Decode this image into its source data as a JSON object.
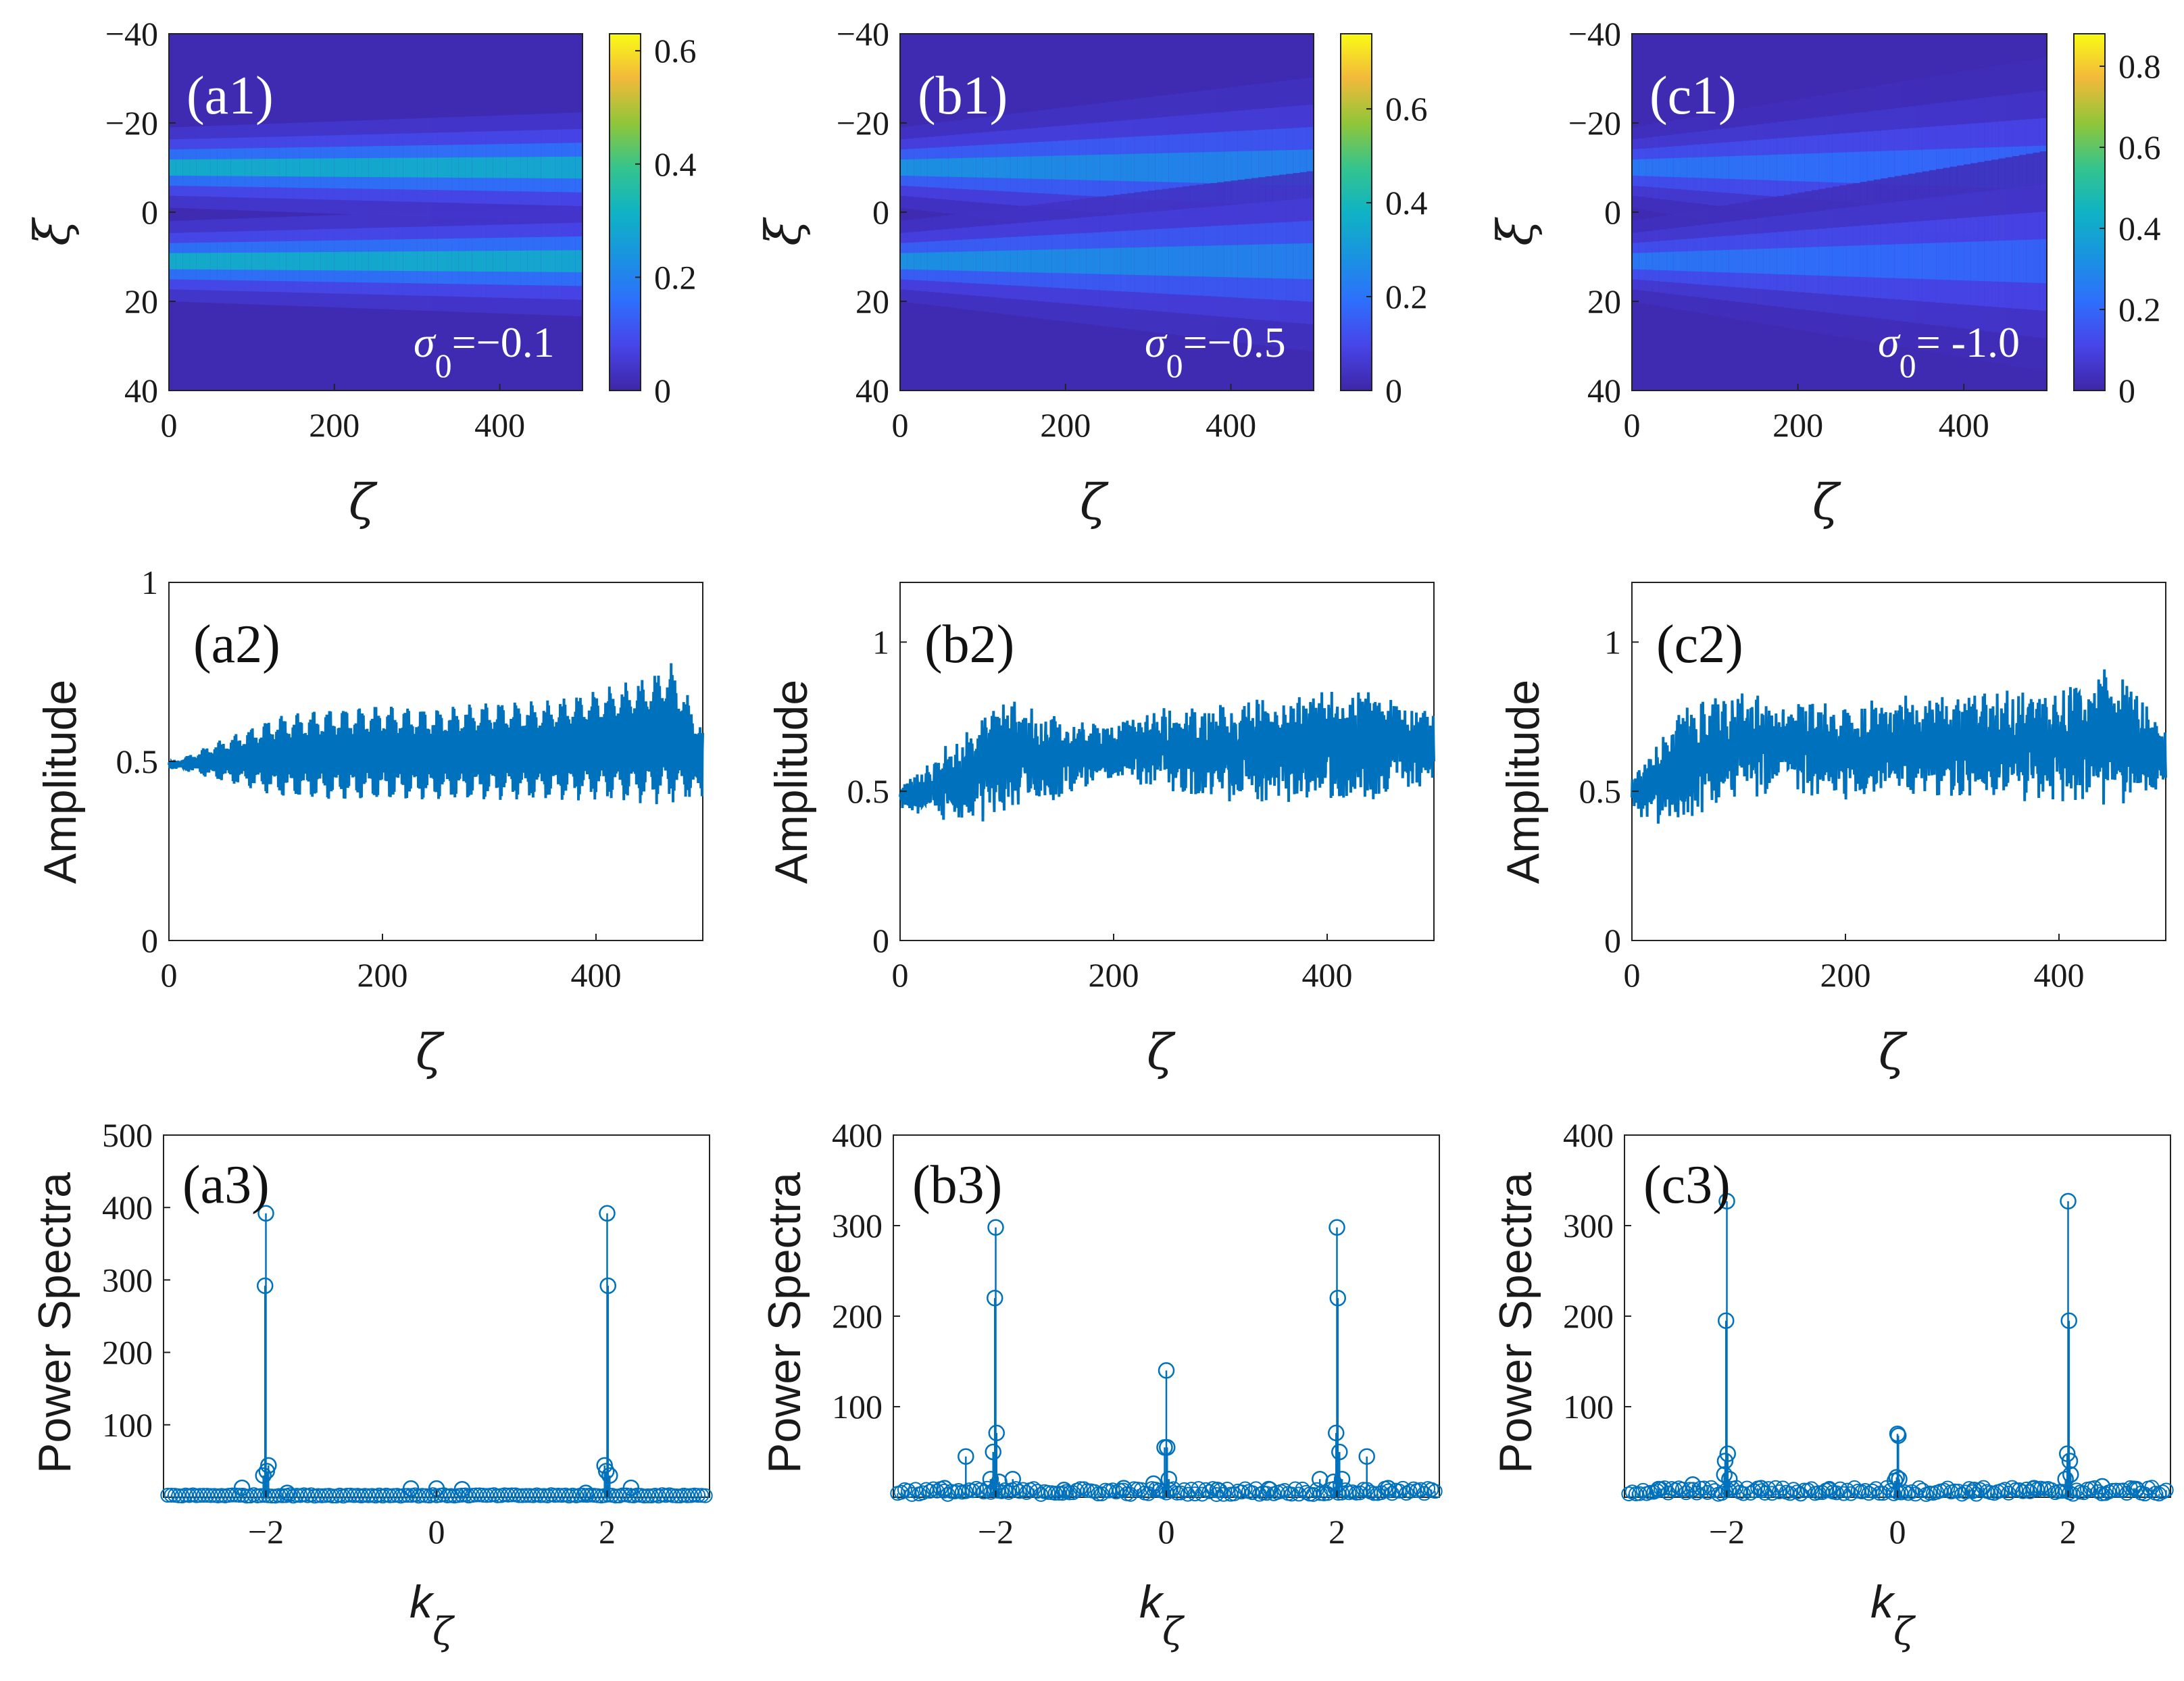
{
  "chart_data": [
    {
      "id": "a1",
      "type": "heatmap",
      "label": "(a1)",
      "xlabel": "ζ",
      "ylabel": "ξ",
      "xlim": [
        0,
        500
      ],
      "ylim": [
        -40,
        40
      ],
      "xticks": [
        "0",
        "200",
        "400"
      ],
      "xtick_values": [
        0,
        200,
        400
      ],
      "yticks": [
        "−40",
        "−20",
        "0",
        "20",
        "40"
      ],
      "ytick_values": [
        -40,
        -20,
        0,
        20,
        40
      ],
      "colorbar_max": 0.63,
      "colorbar_ticks": [
        "0",
        "0.2",
        "0.4",
        "0.6"
      ],
      "colorbar_tick_values": [
        0,
        0.2,
        0.4,
        0.6
      ],
      "annotation_sym": "σ",
      "annotation_sub": "0",
      "annotation_val": "=−0.1",
      "bands": [
        {
          "center": -10,
          "peak": 0.32
        },
        {
          "center": 11,
          "peak": 0.32
        }
      ],
      "spread": 0.15
    },
    {
      "id": "b1",
      "type": "heatmap",
      "label": "(b1)",
      "xlabel": "ζ",
      "ylabel": "ξ",
      "xlim": [
        0,
        500
      ],
      "ylim": [
        -40,
        40
      ],
      "xticks": [
        "0",
        "200",
        "400"
      ],
      "xtick_values": [
        0,
        200,
        400
      ],
      "yticks": [
        "−40",
        "−20",
        "0",
        "20",
        "40"
      ],
      "ytick_values": [
        -40,
        -20,
        0,
        20,
        40
      ],
      "colorbar_max": 0.76,
      "colorbar_ticks": [
        "0",
        "0.2",
        "0.4",
        "0.6"
      ],
      "colorbar_tick_values": [
        0,
        0.2,
        0.4,
        0.6
      ],
      "annotation_sym": "σ",
      "annotation_sub": "0",
      "annotation_val": "=−0.5",
      "bands": [
        {
          "center": -10,
          "peak": 0.3
        },
        {
          "center": 11,
          "peak": 0.3
        }
      ],
      "spread": 0.5
    },
    {
      "id": "c1",
      "type": "heatmap",
      "label": "(c1)",
      "xlabel": "ζ",
      "ylabel": "ξ",
      "xlim": [
        0,
        500
      ],
      "ylim": [
        -40,
        40
      ],
      "xticks": [
        "0",
        "200",
        "400"
      ],
      "xtick_values": [
        0,
        200,
        400
      ],
      "yticks": [
        "−40",
        "−20",
        "0",
        "20",
        "40"
      ],
      "ytick_values": [
        -40,
        -20,
        0,
        20,
        40
      ],
      "colorbar_max": 0.88,
      "colorbar_ticks": [
        "0",
        "0.2",
        "0.4",
        "0.6",
        "0.8"
      ],
      "colorbar_tick_values": [
        0,
        0.2,
        0.4,
        0.6,
        0.8
      ],
      "annotation_sym": "σ",
      "annotation_sub": "0",
      "annotation_val": "= -1.0",
      "bands": [
        {
          "center": -10,
          "peak": 0.26
        },
        {
          "center": 11,
          "peak": 0.26
        }
      ],
      "spread": 0.7
    },
    {
      "id": "a2",
      "type": "line",
      "label": "(a2)",
      "xlabel": "ζ",
      "ylabel": "Amplitude",
      "xlim": [
        0,
        500
      ],
      "ylim": [
        0,
        1
      ],
      "xticks": [
        "0",
        "200",
        "400"
      ],
      "xtick_values": [
        0,
        200,
        400
      ],
      "yticks": [
        "0",
        "0.5",
        "1"
      ],
      "ytick_values": [
        0,
        0.5,
        1
      ],
      "series": [
        {
          "name": "amplitude",
          "x": [
            0,
            20,
            40,
            80,
            100,
            150,
            200,
            250,
            300,
            350,
            400,
            450,
            470,
            500
          ],
          "upper": [
            0.5,
            0.52,
            0.55,
            0.6,
            0.63,
            0.65,
            0.66,
            0.65,
            0.67,
            0.67,
            0.7,
            0.74,
            0.78,
            0.6
          ],
          "lower": [
            0.48,
            0.47,
            0.45,
            0.42,
            0.4,
            0.39,
            0.39,
            0.39,
            0.39,
            0.39,
            0.39,
            0.38,
            0.38,
            0.4
          ],
          "mode": "regular"
        }
      ]
    },
    {
      "id": "b2",
      "type": "line",
      "label": "(b2)",
      "xlabel": "ζ",
      "ylabel": "Amplitude",
      "xlim": [
        0,
        500
      ],
      "ylim": [
        0,
        1.2
      ],
      "xticks": [
        "0",
        "200",
        "400"
      ],
      "xtick_values": [
        0,
        200,
        400
      ],
      "yticks": [
        "0",
        "0.5",
        "1"
      ],
      "ytick_values": [
        0,
        0.5,
        1
      ],
      "series": [
        {
          "name": "amplitude",
          "x": [
            0,
            25,
            50,
            100,
            150,
            200,
            250,
            300,
            350,
            400,
            450,
            500
          ],
          "upper": [
            0.52,
            0.6,
            0.68,
            0.83,
            0.76,
            0.72,
            0.8,
            0.8,
            0.82,
            0.84,
            0.85,
            0.78
          ],
          "lower": [
            0.43,
            0.41,
            0.38,
            0.4,
            0.47,
            0.53,
            0.5,
            0.46,
            0.46,
            0.46,
            0.47,
            0.5
          ],
          "mode": "noisy"
        }
      ]
    },
    {
      "id": "c2",
      "type": "line",
      "label": "(c2)",
      "xlabel": "ζ",
      "ylabel": "Amplitude",
      "xlim": [
        0,
        500
      ],
      "ylim": [
        0,
        1.2
      ],
      "xticks": [
        "0",
        "200",
        "400"
      ],
      "xtick_values": [
        0,
        200,
        400
      ],
      "yticks": [
        "0",
        "0.5",
        "1"
      ],
      "ytick_values": [
        0,
        0.5,
        1
      ],
      "series": [
        {
          "name": "amplitude",
          "x": [
            0,
            25,
            50,
            100,
            150,
            200,
            250,
            300,
            350,
            400,
            450,
            500
          ],
          "upper": [
            0.55,
            0.68,
            0.8,
            0.84,
            0.82,
            0.8,
            0.83,
            0.82,
            0.84,
            0.86,
            0.94,
            0.7
          ],
          "lower": [
            0.43,
            0.38,
            0.4,
            0.48,
            0.48,
            0.47,
            0.48,
            0.48,
            0.46,
            0.45,
            0.44,
            0.5
          ],
          "mode": "noisy"
        }
      ]
    },
    {
      "id": "a3",
      "type": "scatter",
      "label": "(a3)",
      "xlabel": "k",
      "xlabel_sub": "ζ",
      "ylabel": "Power Spectra",
      "xlim": [
        -3.2,
        3.2
      ],
      "ylim": [
        0,
        500
      ],
      "xticks": [
        "−2",
        "0",
        "2"
      ],
      "xtick_values": [
        -2,
        0,
        2
      ],
      "yticks": [
        "100",
        "200",
        "300",
        "400",
        "500"
      ],
      "ytick_values": [
        100,
        200,
        300,
        400,
        500
      ],
      "peaks": [
        {
          "k": -2.0,
          "v": 392
        },
        {
          "k": -2.01,
          "v": 292
        },
        {
          "k": -1.97,
          "v": 44
        },
        {
          "k": -1.99,
          "v": 36
        },
        {
          "k": -2.03,
          "v": 30
        },
        {
          "k": 2.0,
          "v": 392
        },
        {
          "k": 2.01,
          "v": 292
        },
        {
          "k": 1.97,
          "v": 44
        },
        {
          "k": 1.99,
          "v": 36
        },
        {
          "k": 2.03,
          "v": 30
        },
        {
          "k": -2.28,
          "v": 13
        },
        {
          "k": 2.28,
          "v": 13
        },
        {
          "k": -0.3,
          "v": 12
        },
        {
          "k": 0.0,
          "v": 12
        },
        {
          "k": 0.3,
          "v": 11
        },
        {
          "k": -1.75,
          "v": 6
        },
        {
          "k": 1.75,
          "v": 6
        }
      ],
      "baseline": 1.5,
      "baseline_noise": 2
    },
    {
      "id": "b3",
      "type": "scatter",
      "label": "(b3)",
      "xlabel": "k",
      "xlabel_sub": "ζ",
      "ylabel": "Power Spectra",
      "xlim": [
        -3.2,
        3.2
      ],
      "ylim": [
        0,
        400
      ],
      "xticks": [
        "−2",
        "0",
        "2"
      ],
      "xtick_values": [
        -2,
        0,
        2
      ],
      "yticks": [
        "100",
        "200",
        "300",
        "400"
      ],
      "ytick_values": [
        100,
        200,
        300,
        400
      ],
      "peaks": [
        {
          "k": -2.0,
          "v": 298
        },
        {
          "k": -2.01,
          "v": 220
        },
        {
          "k": -1.99,
          "v": 71
        },
        {
          "k": -2.03,
          "v": 50
        },
        {
          "k": -2.06,
          "v": 20
        },
        {
          "k": -1.96,
          "v": 17
        },
        {
          "k": 2.0,
          "v": 298
        },
        {
          "k": 2.01,
          "v": 220
        },
        {
          "k": 1.99,
          "v": 71
        },
        {
          "k": 2.03,
          "v": 50
        },
        {
          "k": 2.06,
          "v": 20
        },
        {
          "k": 1.96,
          "v": 17
        },
        {
          "k": 0.0,
          "v": 140
        },
        {
          "k": 0.01,
          "v": 55
        },
        {
          "k": -0.02,
          "v": 55
        },
        {
          "k": 0.03,
          "v": 20
        },
        {
          "k": -0.15,
          "v": 15
        },
        {
          "k": -2.35,
          "v": 45
        },
        {
          "k": 2.35,
          "v": 45
        },
        {
          "k": -1.8,
          "v": 20
        },
        {
          "k": 1.8,
          "v": 20
        },
        {
          "k": -2.6,
          "v": 10
        },
        {
          "k": 2.6,
          "v": 10
        },
        {
          "k": -0.5,
          "v": 10
        },
        {
          "k": 0.6,
          "v": 8
        },
        {
          "k": -1.2,
          "v": 8
        },
        {
          "k": 1.2,
          "v": 9
        }
      ],
      "baseline": 3,
      "baseline_noise": 7
    },
    {
      "id": "c3",
      "type": "scatter",
      "label": "(c3)",
      "xlabel": "k",
      "xlabel_sub": "ζ",
      "ylabel": "Power Spectra",
      "xlim": [
        -3.2,
        3.2
      ],
      "ylim": [
        0,
        400
      ],
      "xticks": [
        "−2",
        "0",
        "2"
      ],
      "xtick_values": [
        -2,
        0,
        2
      ],
      "yticks": [
        "100",
        "200",
        "300",
        "400"
      ],
      "ytick_values": [
        100,
        200,
        300,
        400
      ],
      "peaks": [
        {
          "k": -2.0,
          "v": 327
        },
        {
          "k": -2.01,
          "v": 195
        },
        {
          "k": -1.99,
          "v": 48
        },
        {
          "k": -2.02,
          "v": 40
        },
        {
          "k": -2.03,
          "v": 25
        },
        {
          "k": -1.97,
          "v": 20
        },
        {
          "k": 2.0,
          "v": 327
        },
        {
          "k": 2.01,
          "v": 195
        },
        {
          "k": 1.99,
          "v": 48
        },
        {
          "k": 2.02,
          "v": 40
        },
        {
          "k": 2.03,
          "v": 25
        },
        {
          "k": 1.97,
          "v": 20
        },
        {
          "k": 0.0,
          "v": 70
        },
        {
          "k": 0.01,
          "v": 68
        },
        {
          "k": -0.01,
          "v": 22
        },
        {
          "k": 0.02,
          "v": 20
        },
        {
          "k": -0.03,
          "v": 18
        },
        {
          "k": -2.4,
          "v": 14
        },
        {
          "k": 2.4,
          "v": 12
        },
        {
          "k": -1.6,
          "v": 10
        },
        {
          "k": 1.6,
          "v": 10
        },
        {
          "k": -0.8,
          "v": 8
        },
        {
          "k": 0.9,
          "v": 8
        },
        {
          "k": -2.8,
          "v": 9
        },
        {
          "k": 2.8,
          "v": 9
        }
      ],
      "baseline": 3,
      "baseline_noise": 8
    }
  ]
}
